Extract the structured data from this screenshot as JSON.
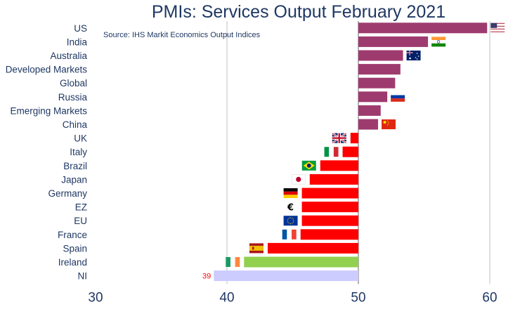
{
  "chart_data": {
    "type": "bar",
    "orientation": "horizontal",
    "title": "PMIs: Services Output February 2021",
    "source": "Source: IHS Markit Economics Output Indices",
    "xlim": [
      30,
      60
    ],
    "baseline": 50,
    "xticks": [
      30,
      40,
      50,
      60
    ],
    "grid": "vertical gridlines at 40, 50, 60",
    "categories": [
      "US",
      "India",
      "Australia",
      "Developed Markets",
      "Global",
      "Russia",
      "Emerging Markets",
      "China",
      "UK",
      "Italy",
      "Brazil",
      "Japan",
      "Germany",
      "EZ",
      "EU",
      "France",
      "Spain",
      "Ireland",
      "NI"
    ],
    "values": [
      59.8,
      55.3,
      53.4,
      53.2,
      52.8,
      52.2,
      51.7,
      51.5,
      49.4,
      48.8,
      47.1,
      46.3,
      45.7,
      45.7,
      45.7,
      45.6,
      43.1,
      41.3,
      39.0
    ],
    "data_labels": [
      {
        "category": "NI",
        "text": "39"
      }
    ],
    "flags": [
      {
        "category": "US",
        "icon": "us-flag-icon"
      },
      {
        "category": "India",
        "icon": "india-flag-icon"
      },
      {
        "category": "Australia",
        "icon": "australia-flag-icon"
      },
      {
        "category": "Russia",
        "icon": "russia-flag-icon"
      },
      {
        "category": "China",
        "icon": "china-flag-icon"
      },
      {
        "category": "UK",
        "icon": "uk-flag-icon"
      },
      {
        "category": "Italy",
        "icon": "italy-flag-icon"
      },
      {
        "category": "Brazil",
        "icon": "brazil-flag-icon"
      },
      {
        "category": "Japan",
        "icon": "japan-flag-icon"
      },
      {
        "category": "Germany",
        "icon": "germany-flag-icon"
      },
      {
        "category": "EZ",
        "icon": "euro-sign-icon"
      },
      {
        "category": "EU",
        "icon": "eu-flag-icon"
      },
      {
        "category": "France",
        "icon": "france-flag-icon"
      },
      {
        "category": "Spain",
        "icon": "spain-flag-icon"
      },
      {
        "category": "Ireland",
        "icon": "ireland-flag-icon"
      }
    ],
    "colors": {
      "above_baseline": "#9e3b6e",
      "below_baseline": "#ff0000",
      "ireland": "#92d050",
      "ni": "#ccccff",
      "axis_text": "#1f3864",
      "gridline": "#bfbfbf",
      "baseline": "#7f7f7f"
    },
    "legend": "none"
  }
}
